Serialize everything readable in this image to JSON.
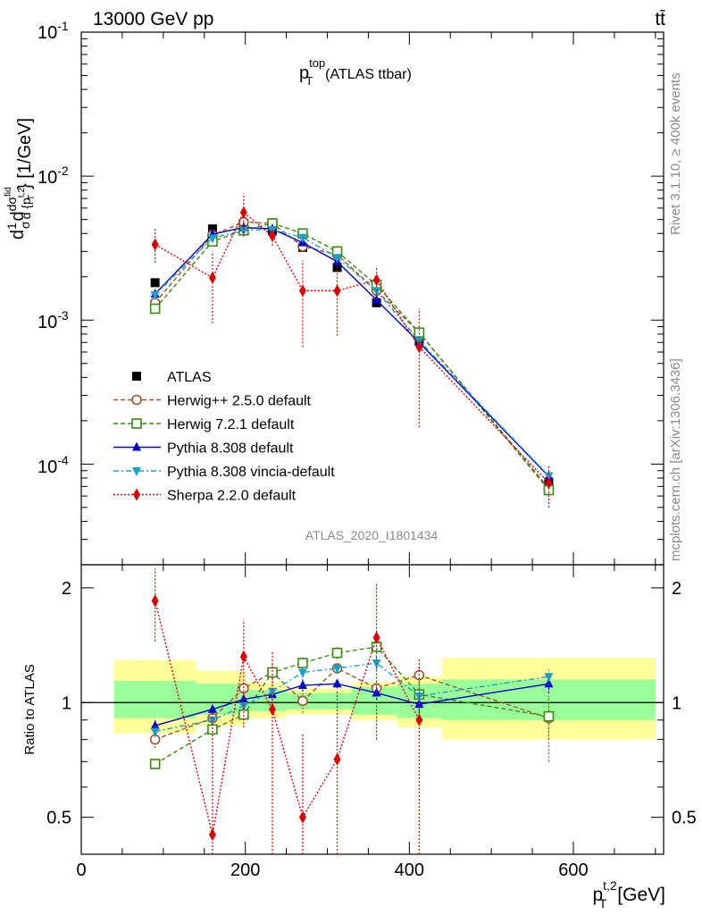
{
  "header": {
    "left": "13000 GeV pp",
    "right": "tt̄"
  },
  "side_labels": {
    "rivet": "Rivet 3.1.10, ≥ 400k events",
    "mcplots": "mcplots.cern.ch [arXiv:1306.3436]"
  },
  "chart_data": [
    {
      "type": "line",
      "panel": "main",
      "title_main": "p",
      "title_sup": "top",
      "title_sub": "T",
      "title_rest": "(ATLAS ttbar)",
      "ylabel_html": "dσ/d{p_T^{t,2}} /σ [1/GeV]",
      "ylabel_parts": {
        "dd": "d",
        "one": "1",
        "sigma": "σ",
        "d": "d",
        "dsigma": "dσ",
        "fid": "fid",
        "dp": "d {p",
        "sup": "t,2",
        "sub": "T",
        "unit": "} [1/GeV]"
      },
      "yscale": "log",
      "ylim": [
        2e-05,
        0.1
      ],
      "xlim": [
        0,
        710
      ],
      "y_ticks": [
        {
          "value": 0.1,
          "base": "10",
          "exp": "-1"
        },
        {
          "value": 0.01,
          "base": "10",
          "exp": "-2"
        },
        {
          "value": 0.001,
          "base": "10",
          "exp": "-3"
        },
        {
          "value": 0.0001,
          "base": "10",
          "exp": "-4"
        }
      ],
      "watermark": "ATLAS_2020_I1801434",
      "legend": [
        "ATLAS",
        "Herwig++ 2.5.0 default",
        "Herwig 7.2.1 default",
        "Pythia 8.308 default",
        "Pythia 8.308 vincia-default",
        "Sherpa 2.2.0 default"
      ],
      "x": [
        90,
        160,
        198,
        233,
        270,
        312,
        360,
        412,
        570
      ],
      "series": [
        {
          "name": "ATLAS",
          "color": "#000000",
          "marker": "square-filled",
          "values": [
            0.00182,
            0.0043,
            0.0047,
            0.00418,
            0.0032,
            0.00232,
            0.00132,
            0.00072,
            7.5e-05
          ]
        },
        {
          "name": "Herwig++ 2.5.0 default",
          "color": "#a0522d",
          "marker": "circle-open",
          "dash": "5,3",
          "values": [
            0.00132,
            0.0039,
            0.0048,
            0.0047,
            0.00325,
            0.00285,
            0.0016,
            0.00082,
            6.8e-05
          ]
        },
        {
          "name": "Herwig 7.2.1 default",
          "color": "#3a8a10",
          "marker": "square-open",
          "dash": "5,3",
          "values": [
            0.0012,
            0.00352,
            0.0042,
            0.0047,
            0.004,
            0.003,
            0.00175,
            0.00082,
            6.6e-05
          ]
        },
        {
          "name": "Pythia 8.308 default",
          "color": "#0000cc",
          "marker": "triangle-up",
          "values": [
            0.00152,
            0.00395,
            0.0044,
            0.0043,
            0.00345,
            0.00255,
            0.00138,
            0.0007,
            8.2e-05
          ]
        },
        {
          "name": "Pythia 8.308 vincia-default",
          "color": "#1aa0c8",
          "marker": "triangle-down",
          "dash": "6,3,2,3",
          "values": [
            0.0015,
            0.00372,
            0.0042,
            0.00425,
            0.00375,
            0.00272,
            0.0016,
            0.00072,
            8.3e-05
          ]
        },
        {
          "name": "Sherpa 2.2.0 default",
          "color": "#dd0000",
          "marker": "diamond",
          "dash": "2,2",
          "values": [
            0.00335,
            0.00197,
            0.0056,
            0.00385,
            0.0016,
            0.0016,
            0.0019,
            0.00065,
            7.4e-05
          ],
          "err_low": [
            0.0025,
            0.00095,
            0.0038,
            0.0033,
            0.00065,
            0.00078,
            0.0015,
            0.00018,
            5e-05
          ],
          "err_high": [
            0.0043,
            0.003,
            0.0076,
            0.0044,
            0.0026,
            0.0025,
            0.0023,
            0.0012,
            9.8e-05
          ]
        }
      ]
    },
    {
      "type": "line",
      "panel": "ratio",
      "ylabel": "Ratio to ATLAS",
      "xlabel_main": "p",
      "xlabel_sup": "t,2",
      "xlabel_sub": "T",
      "xlabel_unit": "[GeV]",
      "ylim": [
        0.4,
        2.3
      ],
      "xlim": [
        0,
        710
      ],
      "x_ticks": [
        0,
        200,
        400,
        600
      ],
      "y_ticks_left": [
        "2",
        "1",
        "0.5"
      ],
      "y_ticks_right": [
        "2",
        "1",
        "0.5"
      ],
      "y_tick_values": [
        2,
        1,
        0.5
      ],
      "reference": 1,
      "bands": [
        {
          "x0": 40,
          "x1": 140,
          "inner": [
            0.91,
            1.14
          ],
          "outer": [
            0.83,
            1.29
          ]
        },
        {
          "x0": 140,
          "x1": 200,
          "inner": [
            0.93,
            1.12
          ],
          "outer": [
            0.87,
            1.21
          ]
        },
        {
          "x0": 200,
          "x1": 250,
          "inner": [
            0.95,
            1.08
          ],
          "outer": [
            0.91,
            1.13
          ]
        },
        {
          "x0": 250,
          "x1": 330,
          "inner": [
            0.96,
            1.06
          ],
          "outer": [
            0.93,
            1.09
          ]
        },
        {
          "x0": 330,
          "x1": 385,
          "inner": [
            0.93,
            1.1
          ],
          "outer": [
            0.9,
            1.13
          ]
        },
        {
          "x0": 385,
          "x1": 440,
          "inner": [
            0.91,
            1.12
          ],
          "outer": [
            0.86,
            1.17
          ]
        },
        {
          "x0": 440,
          "x1": 700,
          "inner": [
            0.9,
            1.15
          ],
          "outer": [
            0.8,
            1.31
          ]
        }
      ],
      "x": [
        90,
        160,
        198,
        233,
        270,
        312,
        360,
        412,
        570
      ],
      "series": [
        {
          "name": "Herwig++ 2.5.0 default",
          "color": "#a0522d",
          "marker": "circle-open",
          "dash": "5,3",
          "values": [
            0.8,
            0.91,
            1.09,
            1.2,
            1.01,
            1.23,
            1.09,
            1.18,
            0.91
          ],
          "err_low": [
            0.76,
            0.87,
            1.05,
            1.12,
            0.94,
            1.19,
            1.04,
            1.12,
            0.7
          ],
          "err_high": [
            0.84,
            0.95,
            1.13,
            1.27,
            1.08,
            1.27,
            1.14,
            1.24,
            1.12
          ]
        },
        {
          "name": "Herwig 7.2.1 default",
          "color": "#3a8a10",
          "marker": "square-open",
          "dash": "5,3",
          "values": [
            0.69,
            0.85,
            0.93,
            1.2,
            1.27,
            1.35,
            1.4,
            1.05,
            0.92
          ],
          "err_low": [
            0.67,
            0.83,
            0.91,
            1.15,
            1.22,
            1.3,
            1.35,
            1.0,
            0.8
          ],
          "err_high": [
            0.71,
            0.87,
            0.95,
            1.25,
            1.32,
            1.4,
            1.45,
            1.1,
            1.04
          ]
        },
        {
          "name": "Pythia 8.308 default",
          "color": "#0000cc",
          "marker": "triangle-up",
          "values": [
            0.87,
            0.96,
            1.02,
            1.05,
            1.11,
            1.12,
            1.06,
            0.99,
            1.12
          ],
          "err_low": [
            0.84,
            0.93,
            0.99,
            1.01,
            1.07,
            1.09,
            1.02,
            0.94,
            1.06
          ],
          "err_high": [
            0.9,
            0.99,
            1.05,
            1.09,
            1.15,
            1.15,
            1.1,
            1.04,
            1.18
          ]
        },
        {
          "name": "Pythia 8.308 vincia-default",
          "color": "#1aa0c8",
          "marker": "triangle-down",
          "dash": "6,3,2,3",
          "values": [
            0.84,
            0.9,
            0.98,
            1.07,
            1.2,
            1.23,
            1.27,
            1.04,
            1.17
          ],
          "err_low": [
            0.81,
            0.87,
            0.95,
            1.03,
            1.16,
            1.19,
            1.22,
            0.99,
            1.11
          ],
          "err_high": [
            0.87,
            0.93,
            1.01,
            1.11,
            1.24,
            1.27,
            1.32,
            1.09,
            1.23
          ]
        },
        {
          "name": "Sherpa 2.2.0 default",
          "color": "#dd0000",
          "marker": "diamond",
          "dash": "2,2",
          "values": [
            1.85,
            0.45,
            1.32,
            0.96,
            0.5,
            0.71,
            1.48,
            0.9,
            null
          ],
          "err_low": [
            1.45,
            0.4,
            0.86,
            0.4,
            0.4,
            0.4,
            0.8,
            0.4,
            null
          ],
          "err_high": [
            2.25,
            0.95,
            1.65,
            1.36,
            0.83,
            1.07,
            2.05,
            1.3,
            null
          ]
        }
      ]
    }
  ]
}
